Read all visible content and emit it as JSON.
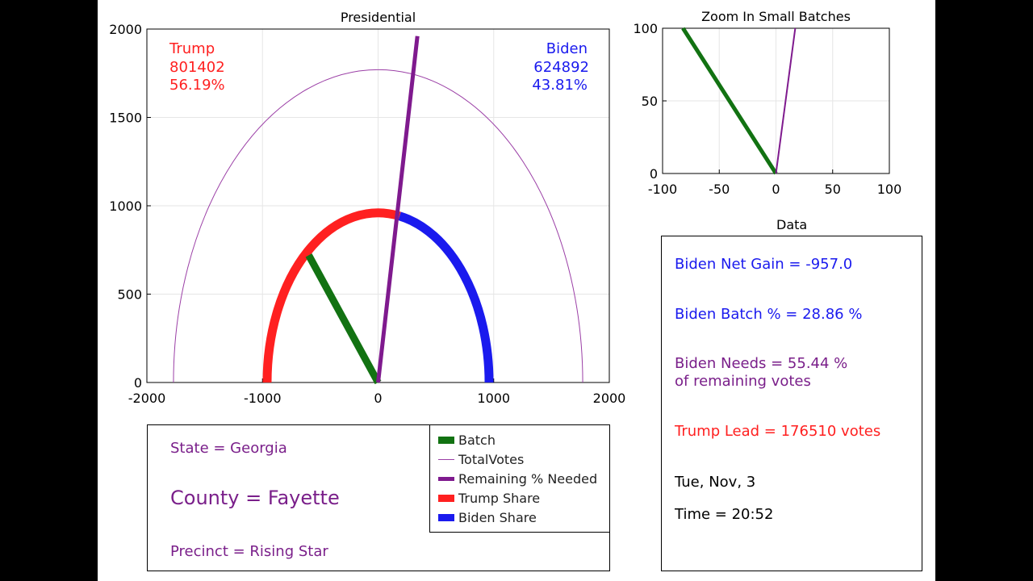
{
  "chart_data": [
    {
      "type": "line",
      "title": "Presidential",
      "xlim": [
        -2000,
        2000
      ],
      "ylim": [
        0,
        2000
      ],
      "xticks": [
        -2000,
        -1000,
        0,
        1000,
        2000
      ],
      "yticks": [
        0,
        500,
        1000,
        1500,
        2000
      ],
      "grid": true,
      "total_votes_radius": 1770,
      "share_radius": 960,
      "trump_share_pct": 56.19,
      "batch_line": {
        "x": [
          0,
          -600
        ],
        "y": [
          0,
          720
        ]
      },
      "remaining_needed_line": {
        "x": [
          0,
          340
        ],
        "y": [
          0,
          1960
        ]
      },
      "annotations": {
        "trump": {
          "name": "Trump",
          "votes": "801402",
          "pct": "56.19%"
        },
        "biden": {
          "name": "Biden",
          "votes": "624892",
          "pct": "43.81%"
        }
      }
    },
    {
      "type": "line",
      "title": "Zoom In Small Batches",
      "xlim": [
        -100,
        100
      ],
      "ylim": [
        0,
        100
      ],
      "xticks": [
        -100,
        -50,
        0,
        50,
        100
      ],
      "yticks": [
        0,
        50,
        100
      ],
      "grid": true,
      "batch_line": {
        "x": [
          0,
          -82
        ],
        "y": [
          0,
          100
        ]
      },
      "remaining_needed_line": {
        "x": [
          0,
          17
        ],
        "y": [
          0,
          100
        ]
      }
    }
  ],
  "colors": {
    "batch": "#127212",
    "total": "#9b3fa6",
    "remaining": "#7f1a8e",
    "trump": "#ff2020",
    "biden": "#1a1aee",
    "purple_text": "#7a1f8a",
    "blue_text": "#1a1aee",
    "red_text": "#ff2020"
  },
  "legend": [
    {
      "label": "Batch",
      "key": "batch"
    },
    {
      "label": "TotalVotes",
      "key": "total"
    },
    {
      "label": "Remaining % Needed",
      "key": "remaining"
    },
    {
      "label": "Trump Share",
      "key": "trump"
    },
    {
      "label": "Biden Share",
      "key": "biden"
    }
  ],
  "info": {
    "state": "State = Georgia",
    "county": "County = Fayette",
    "precinct": "Precinct = Rising Star"
  },
  "data_panel": {
    "title": "Data",
    "net_gain": "Biden Net Gain = -957.0",
    "batch_pct": "Biden Batch % = 28.86 %",
    "needs": "Biden Needs = 55.44 %\nof remaining votes",
    "trump_lead": "Trump Lead = 176510 votes",
    "date": "Tue, Nov, 3",
    "time": "Time = 20:52"
  }
}
